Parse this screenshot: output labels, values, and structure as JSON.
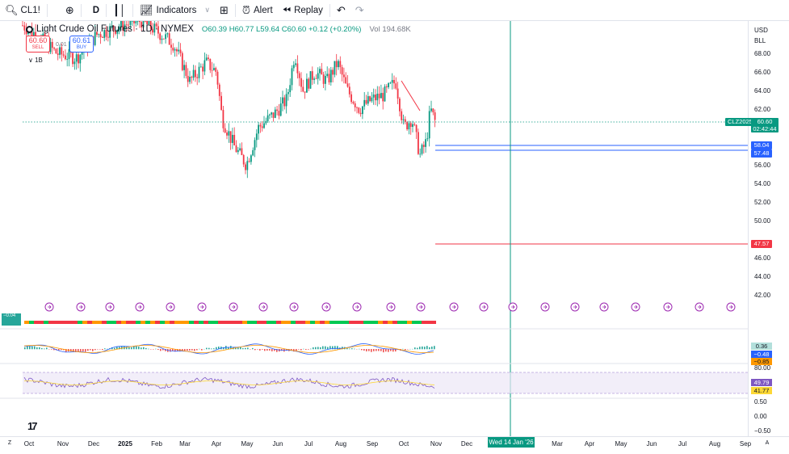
{
  "toolbar": {
    "symbol": "CL1!",
    "interval": "D",
    "indicators": "Indicators",
    "alert": "Alert",
    "replay": "Replay"
  },
  "legend": {
    "title": "Light Crude Oil Futures · 1D · NYMEX",
    "ohlc": "O60.39 H60.77 L59.64 C60.60 +0.12 (+0.20%)",
    "volume": "Vol 194.68K"
  },
  "trade": {
    "sell_price": "60.60",
    "sell_label": "SELL",
    "buy_price": "60.61",
    "buy_label": "BUY",
    "spread": "0.01",
    "quantity": "1B"
  },
  "price_axis": {
    "currency": "USD",
    "unit": "BLL",
    "labels": [
      "68.00",
      "66.00",
      "64.00",
      "62.00",
      "56.00",
      "54.00",
      "52.00",
      "50.00",
      "46.00",
      "44.00",
      "42.00"
    ],
    "symbol_tag": "CLZ2025",
    "last_price": "60.60",
    "countdown": "02:42:44",
    "line1_price": "58.04",
    "line2_price": "57.48",
    "line3_price": "47.57"
  },
  "indicators": {
    "chip_value": "−0.04",
    "macd_values": [
      "0.36",
      "−0.48",
      "−0.85"
    ],
    "rsi_values": [
      "80.00",
      "49.79",
      "41.77"
    ],
    "lower_scale": [
      "0.50",
      "0.00",
      "−0.50"
    ]
  },
  "time_axis": {
    "labels": [
      "Oct",
      "Nov",
      "Dec",
      "2025",
      "Feb",
      "Mar",
      "Apr",
      "May",
      "Jun",
      "Jul",
      "Aug",
      "Sep",
      "Oct",
      "Nov",
      "Dec",
      "Mar",
      "Apr",
      "May",
      "Jun",
      "Jul",
      "Aug",
      "Sep"
    ],
    "cursor_date": "Wed 14 Jan '26"
  },
  "colors": {
    "up": "#089981",
    "down": "#f23645",
    "blue_line": "#2962ff",
    "cursor": "#089981"
  }
}
